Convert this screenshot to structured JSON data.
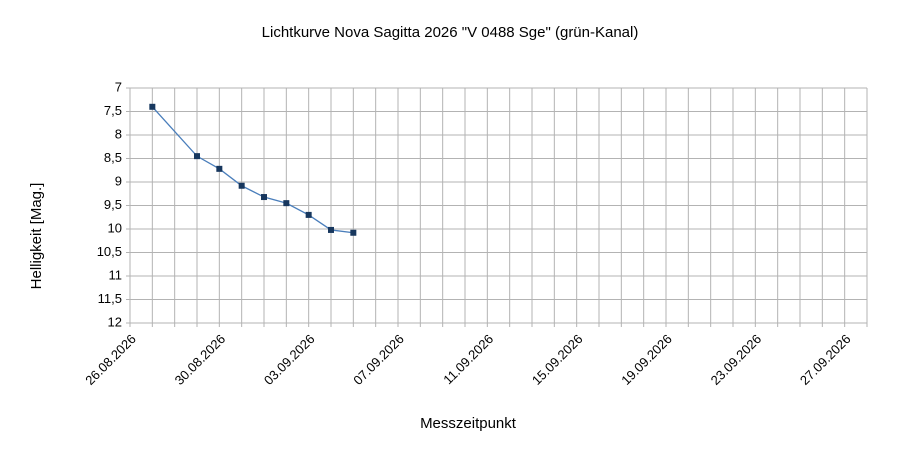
{
  "chart_data": {
    "type": "line",
    "title": "Lichtkurve Nova Sagitta 2026 \"V 0488 Sge\" (grün-Kanal)",
    "x_label": "Messzeitpunkt",
    "y_label": "Helligkeit [Mag.]",
    "x": [
      "27.08.2026",
      "29.08.2026",
      "30.08.2026",
      "31.08.2026",
      "01.09.2026",
      "02.09.2026",
      "03.09.2026",
      "04.09.2026",
      "05.09.2026"
    ],
    "series": [
      {
        "name": "V 0488 Sge",
        "color": "#4a7ebb",
        "marker_color": "#17375e",
        "values": [
          7.4,
          8.45,
          8.72,
          9.08,
          9.32,
          9.45,
          9.7,
          10.02,
          10.08
        ]
      }
    ],
    "xlim": [
      "26.08.2026",
      "28.09.2026"
    ],
    "xticks": [
      "26.08.2026",
      "30.08.2026",
      "03.09.2026",
      "07.09.2026",
      "11.09.2026",
      "15.09.2026",
      "19.09.2026",
      "23.09.2026",
      "27.09.2026"
    ],
    "xgrid": [
      "26.08.2026",
      "27.08.2026",
      "28.08.2026",
      "29.08.2026",
      "30.08.2026",
      "31.08.2026",
      "01.09.2026",
      "02.09.2026",
      "03.09.2026",
      "04.09.2026",
      "05.09.2026",
      "06.09.2026",
      "07.09.2026",
      "08.09.2026",
      "09.09.2026",
      "10.09.2026",
      "11.09.2026",
      "12.09.2026",
      "13.09.2026",
      "14.09.2026",
      "15.09.2026",
      "16.09.2026",
      "17.09.2026",
      "18.09.2026",
      "19.09.2026",
      "20.09.2026",
      "21.09.2026",
      "22.09.2026",
      "23.09.2026",
      "24.09.2026",
      "25.09.2026",
      "26.09.2026",
      "27.09.2026",
      "28.09.2026"
    ],
    "ylim": [
      7,
      12
    ],
    "y_inverted": true,
    "yticks": [
      7,
      {
        "value": 7.5,
        "label": "7,5"
      },
      8,
      {
        "value": 8.5,
        "label": "8,5"
      },
      9,
      {
        "value": 9.5,
        "label": "9,5"
      },
      10,
      {
        "value": 10.5,
        "label": "10,5"
      },
      11,
      {
        "value": 11.5,
        "label": "11,5"
      },
      12
    ],
    "grid": true
  }
}
